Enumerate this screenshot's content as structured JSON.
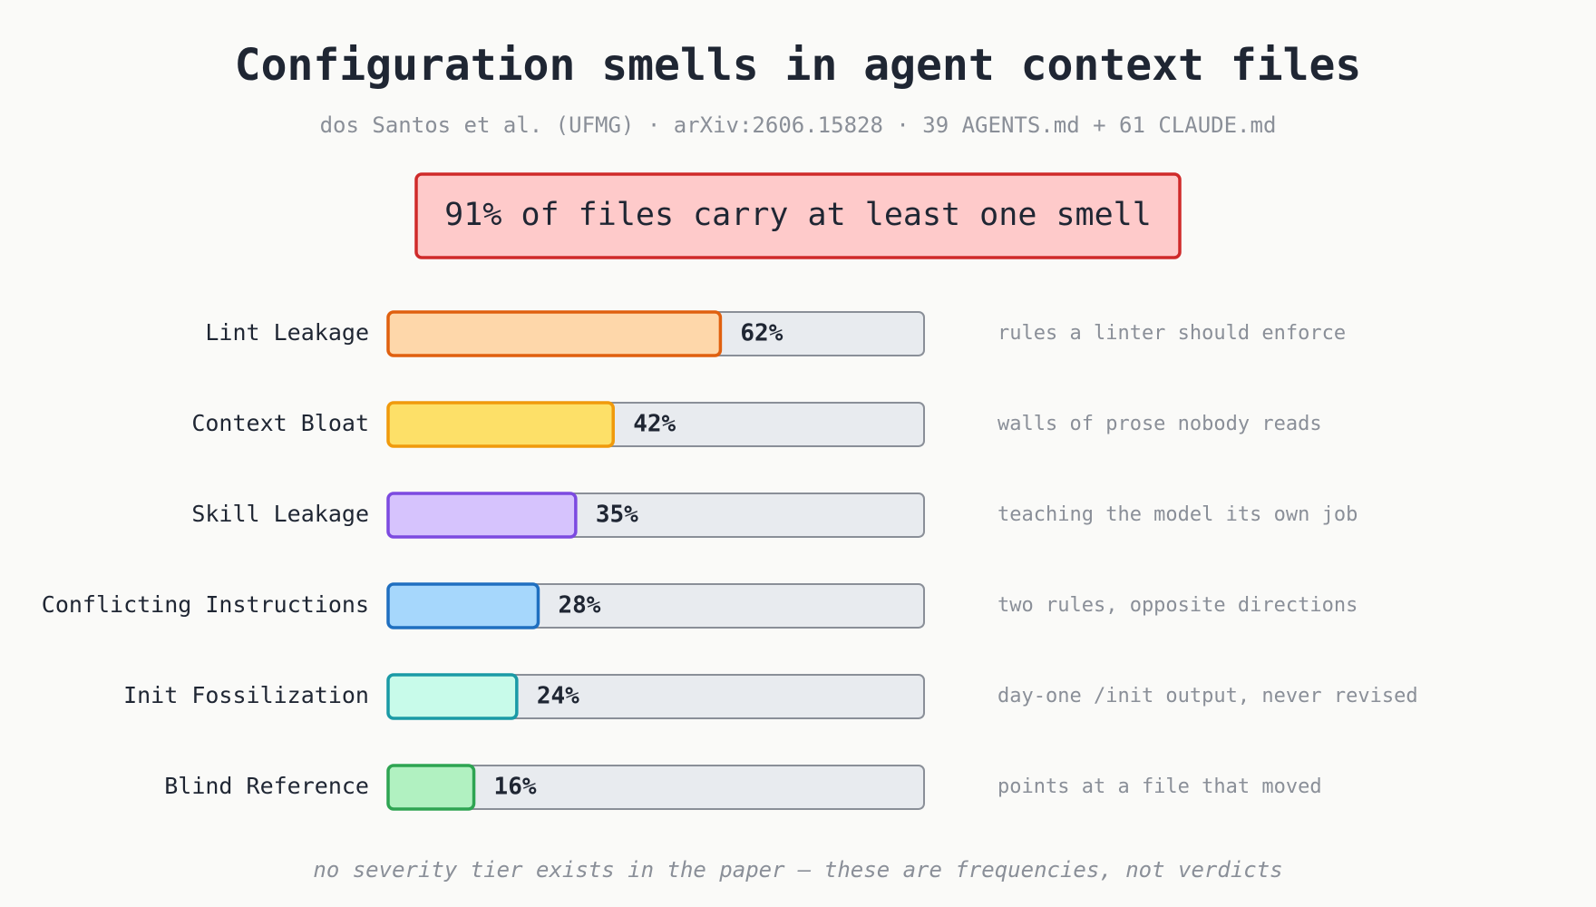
{
  "chart_data": {
    "type": "bar",
    "title": "Configuration smells in agent context files",
    "subtitle": "dos Santos et al. (UFMG) · arXiv:2606.15828 · 39 AGENTS.md + 61 CLAUDE.md",
    "callout": "91% of files carry at least one smell",
    "categories": [
      "Lint Leakage",
      "Context Bloat",
      "Skill Leakage",
      "Conflicting Instructions",
      "Init Fossilization",
      "Blind Reference"
    ],
    "values": [
      62,
      42,
      35,
      28,
      24,
      16
    ],
    "value_labels": [
      "62%",
      "42%",
      "35%",
      "28%",
      "24%",
      "16%"
    ],
    "annotations": [
      "rules a linter should enforce",
      "walls of prose nobody reads",
      "teaching the model its own job",
      "two rules, opposite directions",
      "day-one /init output, never revised",
      "points at a file that moved"
    ],
    "colors": [
      "#fed7aa",
      "#fde068",
      "#d6c3fd",
      "#a6d7fc",
      "#c8fbea",
      "#b1f1c1"
    ],
    "border_colors": [
      "#e0600f",
      "#f09a0c",
      "#7c4ae0",
      "#1f6fc0",
      "#1a9aa6",
      "#2ea452"
    ],
    "xlim": [
      0,
      100
    ],
    "footnote": "no severity tier exists in the paper — these are frequencies, not verdicts"
  }
}
